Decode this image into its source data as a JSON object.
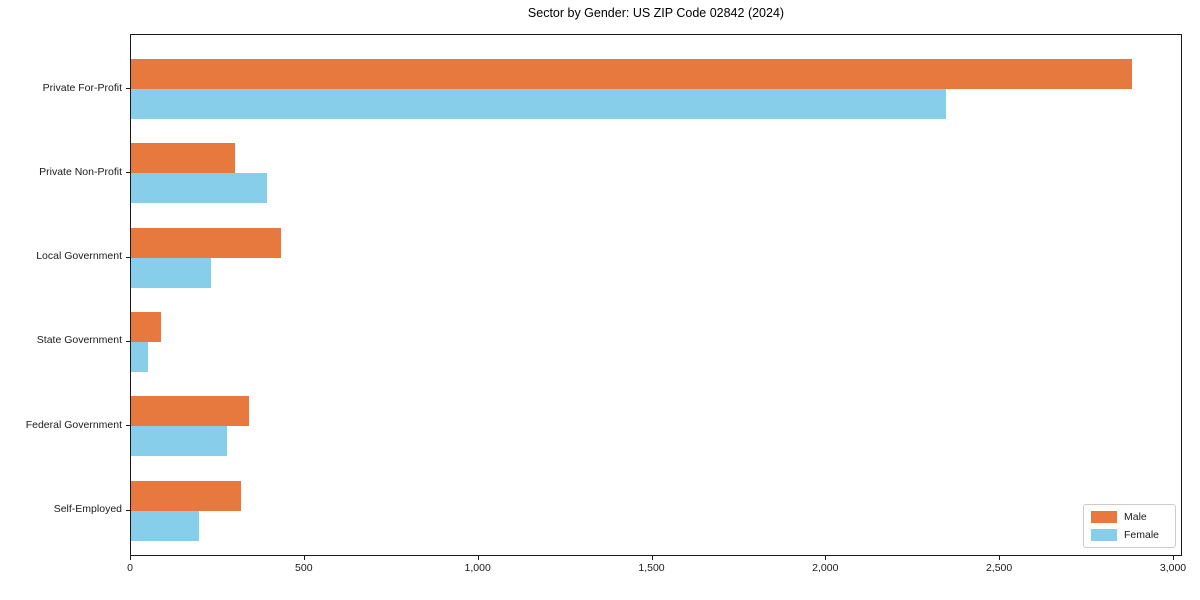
{
  "chart_data": {
    "type": "bar",
    "orientation": "horizontal",
    "title": "Sector by Gender: US ZIP Code 02842 (2024)",
    "xlabel": "",
    "ylabel": "",
    "categories": [
      "Private For-Profit",
      "Private Non-Profit",
      "Local Government",
      "State Government",
      "Federal Government",
      "Self-Employed"
    ],
    "series": [
      {
        "name": "Male",
        "color": "#E8793E",
        "values": [
          2880,
          300,
          430,
          85,
          340,
          315
        ]
      },
      {
        "name": "Female",
        "color": "#87CEEB",
        "values": [
          2345,
          390,
          230,
          50,
          275,
          195
        ]
      }
    ],
    "xlim": [
      0,
      3026
    ],
    "x_ticks": [
      0,
      500,
      1000,
      1500,
      2000,
      2500,
      3000
    ],
    "x_tick_labels": [
      "0",
      "500",
      "1,000",
      "1,500",
      "2,000",
      "2,500",
      "3,000"
    ],
    "grid": false,
    "legend_position": "lower right",
    "colors": {
      "axis": "#1a1a1a",
      "background": "#ffffff",
      "legend_border": "#cccccc"
    }
  }
}
